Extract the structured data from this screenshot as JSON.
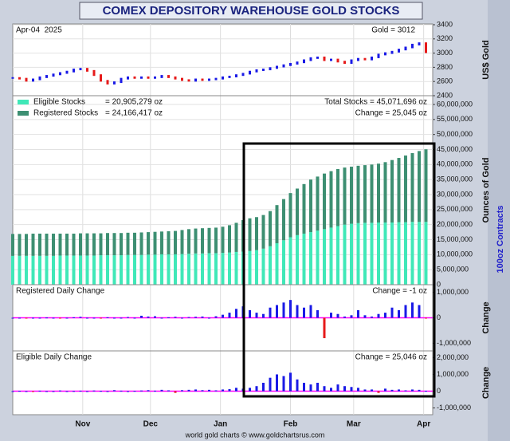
{
  "title": "COMEX DEPOSITORY WAREHOUSE GOLD STOCKS",
  "footer": "world gold charts © www.goldchartsrus.com",
  "right_label": "100oz Contracts",
  "chart_data": [
    {
      "type": "candlestick",
      "date_label": "Apr-04  2025",
      "price_label": "Gold = 3012",
      "y_label": "US$ Gold",
      "x": [
        0,
        3,
        6,
        9,
        12,
        15,
        18,
        21,
        24,
        27,
        30,
        33,
        36,
        39,
        42,
        45,
        48,
        51,
        54,
        57,
        60,
        63,
        66,
        69,
        72,
        75,
        78,
        81,
        84,
        87,
        90,
        93,
        96,
        99,
        102,
        105,
        108,
        111,
        114,
        117,
        120,
        123,
        126,
        129,
        132,
        135,
        138,
        141,
        144,
        147,
        150,
        153,
        156,
        159,
        162,
        165,
        168,
        171,
        174,
        177,
        180,
        183
      ],
      "xlim": [
        0,
        186
      ],
      "xticks": [
        {
          "value": 31,
          "label": "Nov"
        },
        {
          "value": 61,
          "label": "Dec"
        },
        {
          "value": 92,
          "label": "Jan"
        },
        {
          "value": 123,
          "label": "Feb"
        },
        {
          "value": 151,
          "label": "Mar"
        },
        {
          "value": 182,
          "label": "Apr"
        }
      ],
      "values": [
        2650,
        2640,
        2610,
        2630,
        2660,
        2680,
        2700,
        2720,
        2740,
        2770,
        2780,
        2750,
        2690,
        2610,
        2570,
        2590,
        2640,
        2660,
        2650,
        2660,
        2650,
        2660,
        2680,
        2660,
        2640,
        2620,
        2610,
        2630,
        2620,
        2630,
        2640,
        2660,
        2670,
        2690,
        2710,
        2740,
        2760,
        2770,
        2790,
        2810,
        2830,
        2850,
        2870,
        2900,
        2930,
        2940,
        2900,
        2910,
        2880,
        2860,
        2900,
        2920,
        2910,
        2940,
        2980,
        3000,
        3020,
        3050,
        3080,
        3120,
        3140,
        3012
      ],
      "ylim": [
        2400,
        3400
      ],
      "yticks": [
        2400,
        2600,
        2800,
        3000,
        3200,
        3400
      ],
      "up_color": "#1a1ae6",
      "down_color": "#e61a1a",
      "grid": true
    },
    {
      "type": "stacked_bar",
      "y_label": "Ounces of Gold",
      "series": [
        {
          "name": "Eligible Stocks",
          "value_label": "= 20,905,279 oz",
          "color": "#40e8b8",
          "values": [
            9600000,
            9600000,
            9600000,
            9600000,
            9600000,
            9600000,
            9600000,
            9700000,
            9700000,
            9700000,
            9700000,
            9700000,
            9700000,
            9800000,
            9800000,
            9800000,
            9800000,
            9900000,
            9900000,
            9900000,
            10000000,
            10000000,
            10100000,
            10100000,
            10100000,
            10200000,
            10300000,
            10400000,
            10400000,
            10500000,
            10500000,
            10600000,
            10700000,
            10900000,
            11000000,
            11200000,
            11500000,
            12000000,
            12800000,
            13800000,
            14800000,
            15800000,
            16500000,
            17000000,
            17500000,
            18000000,
            18500000,
            19000000,
            19500000,
            20000000,
            20300000,
            20500000,
            20600000,
            20600000,
            20700000,
            20700000,
            20700000,
            20800000,
            20800000,
            20900000,
            20900000,
            20905279
          ]
        },
        {
          "name": "Registered Stocks",
          "value_label": "= 24,166,417 oz",
          "color": "#3d8f72",
          "values": [
            7300000,
            7300000,
            7300000,
            7400000,
            7400000,
            7400000,
            7400000,
            7300000,
            7300000,
            7300000,
            7400000,
            7400000,
            7400000,
            7300000,
            7400000,
            7400000,
            7400000,
            7400000,
            7400000,
            7500000,
            7500000,
            7600000,
            7600000,
            7700000,
            7800000,
            8000000,
            8200000,
            8300000,
            8400000,
            8400000,
            8500000,
            8700000,
            9100000,
            9700000,
            10500000,
            10900000,
            11000000,
            11200000,
            11700000,
            12700000,
            13700000,
            14700000,
            15500000,
            16500000,
            17500000,
            18000000,
            18500000,
            18800000,
            19000000,
            19000000,
            19000000,
            19100000,
            19200000,
            19400000,
            19600000,
            20100000,
            20800000,
            21400000,
            22200000,
            22900000,
            23600000,
            24166417
          ]
        }
      ],
      "annotations": [
        "Total Stocks = 45,071,696 oz",
        "Change = 25,045 oz"
      ],
      "ylim": [
        0,
        60000000
      ],
      "yticks": [
        0,
        {
          "value": 5000000,
          "label": "5,000,000"
        },
        {
          "value": 10000000,
          "label": "10,000,000"
        },
        {
          "value": 15000000,
          "label": "15,000,000"
        },
        {
          "value": 20000000,
          "label": "20,000,000"
        },
        {
          "value": 25000000,
          "label": "25,000,000"
        },
        {
          "value": 30000000,
          "label": "30,000,000"
        },
        {
          "value": 35000000,
          "label": "35,000,000"
        },
        {
          "value": 40000000,
          "label": "40,000,000"
        },
        {
          "value": 45000000,
          "label": "45,000,000"
        },
        {
          "value": 50000000,
          "label": "50,000,000"
        },
        {
          "value": 55000000,
          "label": "55,000,000"
        },
        {
          "value": 60000000,
          "label": "60,000,000"
        }
      ],
      "grid": true
    },
    {
      "type": "bar",
      "title": "Registered Daily Change",
      "annotation": "Change = -1 oz",
      "y_label": "Change",
      "values": [
        0,
        0,
        -20000,
        0,
        0,
        10000,
        0,
        -15000,
        0,
        20000,
        40000,
        0,
        0,
        -30000,
        20000,
        0,
        0,
        30000,
        0,
        80000,
        50000,
        60000,
        0,
        20000,
        40000,
        0,
        30000,
        40000,
        50000,
        0,
        60000,
        120000,
        200000,
        350000,
        450000,
        300000,
        200000,
        150000,
        400000,
        500000,
        600000,
        700000,
        500000,
        400000,
        500000,
        300000,
        -800000,
        200000,
        150000,
        50000,
        100000,
        300000,
        100000,
        50000,
        150000,
        200000,
        400000,
        300000,
        500000,
        600000,
        500000,
        -1
      ],
      "ylim": [
        -1300000,
        1300000
      ],
      "yticks": [
        {
          "value": -1000000,
          "label": "-1,000,000"
        },
        0,
        {
          "value": 1000000,
          "label": "1,000,000"
        }
      ],
      "color": "#1a1ae6",
      "negative_color": "#e61a1a",
      "zero_color": "#ff00ff"
    },
    {
      "type": "bar",
      "title": "Eligible Daily Change",
      "annotation": "Change = 25,046 oz",
      "y_label": "Change",
      "values": [
        0,
        20000,
        0,
        -20000,
        30000,
        0,
        0,
        40000,
        0,
        10000,
        30000,
        0,
        40000,
        20000,
        0,
        60000,
        30000,
        0,
        20000,
        40000,
        60000,
        30000,
        80000,
        50000,
        -100000,
        60000,
        80000,
        100000,
        60000,
        80000,
        50000,
        100000,
        120000,
        200000,
        150000,
        200000,
        300000,
        500000,
        800000,
        1000000,
        900000,
        1100000,
        700000,
        500000,
        400000,
        500000,
        300000,
        200000,
        400000,
        300000,
        250000,
        200000,
        100000,
        100000,
        -100000,
        150000,
        80000,
        100000,
        50000,
        100000,
        80000,
        25046
      ],
      "ylim": [
        -1400000,
        2400000
      ],
      "yticks": [
        {
          "value": -1000000,
          "label": "-1,000,000"
        },
        0,
        {
          "value": 1000000,
          "label": "1,000,000"
        },
        {
          "value": 2000000,
          "label": "2,000,000"
        }
      ],
      "color": "#1a1ae6",
      "negative_color": "#e61a1a",
      "zero_color": "#ff00ff"
    }
  ]
}
